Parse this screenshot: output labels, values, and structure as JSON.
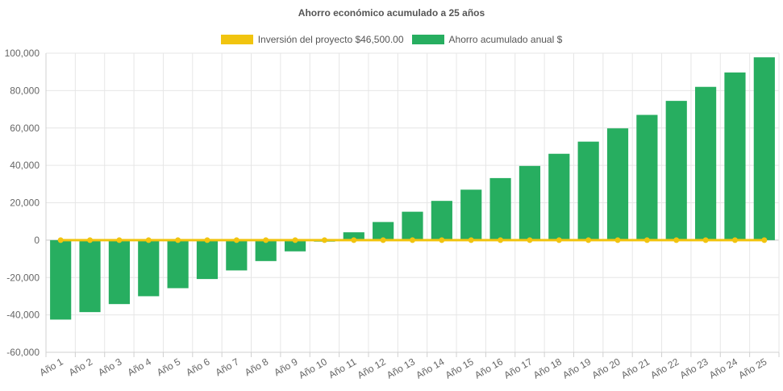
{
  "chart_data": {
    "type": "bar",
    "title": "Ahorro económico acumulado a 25 años",
    "categories": [
      "Año 1",
      "Año 2",
      "Año 3",
      "Año 4",
      "Año 5",
      "Año 6",
      "Año 7",
      "Año 8",
      "Año 9",
      "Año 10",
      "Año 11",
      "Año 12",
      "Año 13",
      "Año 14",
      "Año 15",
      "Año 16",
      "Año 17",
      "Año 18",
      "Año 19",
      "Año 20",
      "Año 21",
      "Año 22",
      "Año 23",
      "Año 24",
      "Año 25"
    ],
    "series": [
      {
        "name": "Inversión del proyecto $46,500.00",
        "type": "line",
        "color": "#f1c40f",
        "values": [
          0,
          0,
          0,
          0,
          0,
          0,
          0,
          0,
          0,
          0,
          0,
          0,
          0,
          0,
          0,
          0,
          0,
          0,
          0,
          0,
          0,
          0,
          0,
          0,
          0
        ]
      },
      {
        "name": "Ahorro acumulado anual $",
        "type": "bar",
        "color": "#27ae60",
        "values": [
          -42500,
          -38500,
          -34200,
          -30000,
          -25700,
          -20800,
          -16200,
          -11200,
          -6000,
          -800,
          4200,
          9700,
          15200,
          21000,
          27000,
          33200,
          39700,
          46200,
          52700,
          59800,
          67000,
          74500,
          82000,
          89700,
          97800
        ]
      }
    ],
    "ylim": [
      -60000,
      100000
    ],
    "yticks": [
      "100,000",
      "80,000",
      "60,000",
      "40,000",
      "20,000",
      "0",
      "-20,000",
      "-40,000",
      "-60,000"
    ],
    "ytick_values": [
      100000,
      80000,
      60000,
      40000,
      20000,
      0,
      -20000,
      -40000,
      -60000
    ],
    "grid": true,
    "legend_position": "top"
  }
}
